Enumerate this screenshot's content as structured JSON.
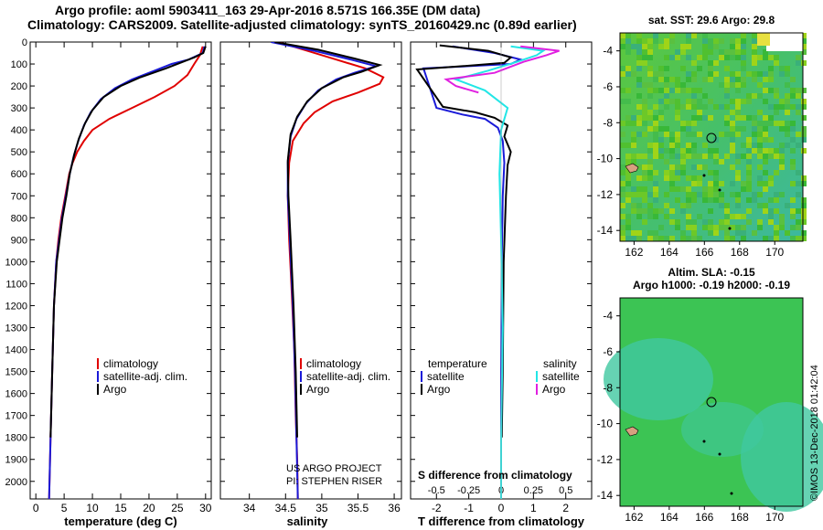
{
  "title": {
    "line1": "Argo profile: aoml 5903411_163 29-Apr-2016 8.571S 166.35E (DM data)",
    "line2": "Climatology: CARS2009. Satellite-adjusted climatology: synTS_20160429.nc (0.89d earlier)"
  },
  "credit": {
    "project": "US ARGO PROJECT",
    "pi": "PI: STEPHEN RISER",
    "imos": "©IMOS 13-Dec-2018 01:42:04"
  },
  "colors": {
    "climatology": "#e00000",
    "satellite": "#1a1ad8",
    "argo": "#000000",
    "sal_satellite": "#22e6e6",
    "sal_argo": "#e020e0"
  },
  "chart_data": [
    {
      "type": "line",
      "id": "temperature",
      "xlabel": "temperature (deg C)",
      "ylabel": "",
      "xlim": [
        -1,
        31
      ],
      "ylim": [
        2080,
        0
      ],
      "xticks": [
        "0",
        "5",
        "10",
        "15",
        "20",
        "25",
        "30"
      ],
      "yticks": [
        "0",
        "100",
        "200",
        "300",
        "400",
        "500",
        "600",
        "700",
        "800",
        "900",
        "1000",
        "1100",
        "1200",
        "1300",
        "1400",
        "1500",
        "1600",
        "1700",
        "1800",
        "1900",
        "2000"
      ],
      "legend": [
        "climatology",
        "satellite-adj. clim.",
        "Argo"
      ],
      "series": [
        {
          "name": "climatology",
          "color": "#e00000",
          "x": [
            29.5,
            29,
            28,
            26.8,
            24.5,
            21,
            17,
            13,
            10,
            8.5,
            7.3,
            6.5,
            5.9,
            5.2,
            4.5,
            4.0,
            3.6,
            3.2,
            2.9,
            2.6,
            2.35
          ],
          "y": [
            20,
            60,
            100,
            150,
            200,
            250,
            300,
            350,
            400,
            450,
            500,
            550,
            600,
            700,
            800,
            900,
            1000,
            1200,
            1500,
            1800,
            2080
          ]
        },
        {
          "name": "satellite-adj. clim.",
          "color": "#1a1ad8",
          "x": [
            29.8,
            29.5,
            27,
            24,
            21,
            17,
            14,
            11.5,
            9.7,
            8.5,
            7.5,
            6.7,
            6.0,
            5.3,
            4.6,
            4.1,
            3.6,
            3.2,
            2.9,
            2.6,
            2.35
          ],
          "y": [
            20,
            50,
            80,
            100,
            130,
            170,
            210,
            260,
            320,
            380,
            450,
            520,
            600,
            700,
            800,
            900,
            1000,
            1200,
            1500,
            1800,
            2080
          ]
        },
        {
          "name": "Argo",
          "color": "#000000",
          "x": [
            30,
            29.6,
            28,
            25.5,
            23,
            18.5,
            15,
            12,
            10,
            8.7,
            7.6,
            6.8,
            6.0,
            5.4,
            4.7,
            4.2,
            3.7,
            3.2,
            2.9,
            2.6
          ],
          "y": [
            20,
            50,
            70,
            95,
            120,
            160,
            200,
            250,
            310,
            370,
            440,
            510,
            600,
            700,
            800,
            900,
            1000,
            1200,
            1500,
            1800
          ]
        }
      ]
    },
    {
      "type": "line",
      "id": "salinity",
      "xlabel": "salinity",
      "ylabel": "",
      "xlim": [
        33.6,
        36.1
      ],
      "ylim": [
        2080,
        0
      ],
      "xticks": [
        "34",
        "34.5",
        "35",
        "35.5",
        "36"
      ],
      "legend": [
        "climatology",
        "satellite-adj. clim.",
        "Argo"
      ],
      "series": [
        {
          "name": "climatology",
          "color": "#e00000",
          "x": [
            34.4,
            34.8,
            35.2,
            35.6,
            35.85,
            35.8,
            35.5,
            35.15,
            34.9,
            34.75,
            34.6,
            34.55,
            34.53,
            34.55,
            34.58,
            34.62,
            34.64,
            34.66,
            34.67
          ],
          "y": [
            0,
            40,
            80,
            120,
            160,
            190,
            230,
            270,
            320,
            370,
            450,
            550,
            700,
            900,
            1100,
            1400,
            1700,
            1900,
            2080
          ]
        },
        {
          "name": "satellite-adj. clim.",
          "color": "#1a1ad8",
          "x": [
            34.3,
            34.9,
            35.4,
            35.75,
            35.45,
            35.2,
            34.95,
            34.78,
            34.65,
            34.57,
            34.53,
            34.53,
            34.56,
            34.6,
            34.63,
            34.65,
            34.67
          ],
          "y": [
            0,
            40,
            80,
            110,
            140,
            170,
            220,
            280,
            350,
            430,
            550,
            700,
            900,
            1200,
            1500,
            1800,
            2080
          ]
        },
        {
          "name": "Argo",
          "color": "#000000",
          "x": [
            34.35,
            34.95,
            35.45,
            35.8,
            35.55,
            35.3,
            35.0,
            34.8,
            34.66,
            34.57,
            34.53,
            34.54,
            34.57,
            34.61,
            34.64,
            34.66
          ],
          "y": [
            0,
            35,
            75,
            105,
            135,
            160,
            210,
            270,
            340,
            420,
            540,
            700,
            900,
            1200,
            1500,
            1800
          ]
        }
      ]
    },
    {
      "type": "line",
      "id": "difference",
      "xlabel": "T difference from climatology",
      "toplabel": "S difference from climatology",
      "ylabel": "",
      "xlim": [
        -2.8,
        2.8
      ],
      "ylim": [
        2080,
        0
      ],
      "xticks": [
        "-2",
        "-1",
        "0",
        "1",
        "2"
      ],
      "sticks": [
        "-0.5",
        "-0.25",
        "0",
        "0.25",
        "0.5"
      ],
      "legend_left": [
        "temperature",
        "satellite",
        "Argo"
      ],
      "legend_right": [
        "salinity",
        "satellite",
        "Argo"
      ],
      "series": [
        {
          "name": "satellite",
          "color": "#1a1ad8",
          "x": [
            -1.5,
            -0.2,
            0.6,
            0.3,
            -1.0,
            -2.4,
            -2.0,
            -1.2,
            -0.5,
            -0.1,
            0.05,
            0.1,
            0.05,
            0.02,
            0.0,
            0.0
          ],
          "y": [
            20,
            50,
            80,
            100,
            110,
            120,
            300,
            330,
            350,
            390,
            450,
            550,
            700,
            1000,
            1500,
            2080
          ]
        },
        {
          "name": "Argo",
          "color": "#000000",
          "x": [
            -1.9,
            -0.4,
            0.3,
            0.1,
            -1.2,
            -2.6,
            -1.8,
            -0.8,
            -0.2,
            0.2,
            0.1,
            0.3,
            0.2,
            0.15,
            0.08,
            0.05,
            0.02
          ],
          "y": [
            15,
            40,
            70,
            95,
            110,
            125,
            295,
            320,
            345,
            380,
            430,
            500,
            560,
            700,
            1000,
            1500,
            1800
          ]
        },
        {
          "name": "salinity satellite",
          "color": "#22e6e6",
          "x": [
            0.3,
            1.3,
            1.1,
            0.5,
            -0.4,
            -1.4,
            -0.5,
            0.2,
            0.0,
            -0.05,
            0.0,
            0.05,
            0.0,
            0.0
          ],
          "y": [
            20,
            40,
            60,
            90,
            130,
            170,
            220,
            300,
            400,
            600,
            900,
            1300,
            1800,
            2080
          ]
        },
        {
          "name": "salinity Argo",
          "color": "#e020e0",
          "x": [
            0.6,
            1.8,
            1.4,
            0.7,
            -0.2,
            -1.7,
            -1.4,
            -0.7
          ],
          "y": [
            20,
            40,
            60,
            90,
            140,
            170,
            200,
            230
          ]
        }
      ]
    }
  ],
  "maps": {
    "top": {
      "title": "sat. SST: 29.6 Argo: 29.8"
    },
    "bottom": {
      "title1": "Altim. SLA: -0.15",
      "title2": "Argo h1000: -0.19 h2000: -0.19"
    },
    "xticks": [
      "162",
      "164",
      "166",
      "168",
      "170"
    ],
    "yticks": [
      "-4",
      "-6",
      "-8",
      "-10",
      "-12",
      "-14"
    ],
    "float": {
      "lon": 166.35,
      "lat": -8.571
    }
  }
}
